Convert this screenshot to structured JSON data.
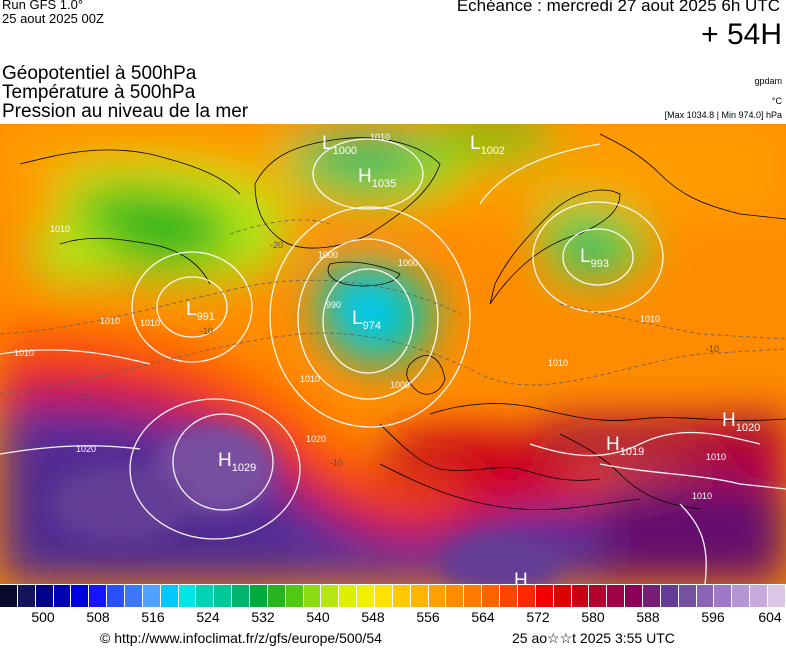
{
  "header": {
    "run_line1": "Run GFS 1.0°",
    "run_line2": "25 aout 2025 00Z",
    "echeance": "Echéance : mercredi 27 aout 2025 6h UTC",
    "lead_time": "+ 54H"
  },
  "titles": {
    "line1": "Géopotentiel à 500hPa",
    "line2": "Température à 500hPa",
    "line3": "Pression au niveau de la mer"
  },
  "units": {
    "line1": "gpdam",
    "line2": "°C",
    "line3": "[Max 1034.8 | Min 974.0] hPa"
  },
  "pressure_centers": [
    {
      "type": "L",
      "value": "1000"
    },
    {
      "type": "L",
      "value": "1002"
    },
    {
      "type": "H",
      "value": "1035"
    },
    {
      "type": "L",
      "value": "993"
    },
    {
      "type": "L",
      "value": "991"
    },
    {
      "type": "L",
      "value": "974"
    },
    {
      "type": "H",
      "value": "1029"
    },
    {
      "type": "H",
      "value": "1020"
    },
    {
      "type": "H",
      "value": "1019"
    },
    {
      "type": "H",
      "value": ""
    }
  ],
  "isobar_labels": [
    "1010",
    "1010",
    "1010",
    "1010",
    "1000",
    "1000",
    "990",
    "1020",
    "1020",
    "1010",
    "1010",
    "1010",
    "1010",
    "1000",
    "1010",
    "1010"
  ],
  "isotherm_labels": [
    "-10",
    "-10",
    "-10",
    "-10",
    "-20"
  ],
  "colorbar": {
    "colors": [
      "#0a0a2e",
      "#14145a",
      "#00008c",
      "#0000b4",
      "#0000dc",
      "#1414ff",
      "#2850ff",
      "#3c78ff",
      "#50a0ff",
      "#00c8ff",
      "#00e6e6",
      "#00d2b4",
      "#00c896",
      "#00b46e",
      "#00aa3c",
      "#28b41e",
      "#50c814",
      "#8cdc14",
      "#b4e614",
      "#dcf000",
      "#f0f000",
      "#ffe100",
      "#ffc800",
      "#ffb400",
      "#ffa000",
      "#ff8c00",
      "#ff7800",
      "#ff6400",
      "#ff4600",
      "#ff2800",
      "#f00000",
      "#dc0000",
      "#c80014",
      "#b4002d",
      "#a00046",
      "#8c005a",
      "#781e78",
      "#643c96",
      "#7850a0",
      "#8c64b4",
      "#a078c8",
      "#b496d2",
      "#c8aadc",
      "#dcc8e6"
    ],
    "labels": [
      "500",
      "508",
      "516",
      "524",
      "532",
      "540",
      "548",
      "556",
      "564",
      "572",
      "580",
      "588",
      "596",
      "604"
    ]
  },
  "footer": {
    "url": "© http://www.infoclimat.fr/z/gfs/europe/500/54",
    "date": "25 ao☆☆t 2025  3:55 UTC"
  }
}
